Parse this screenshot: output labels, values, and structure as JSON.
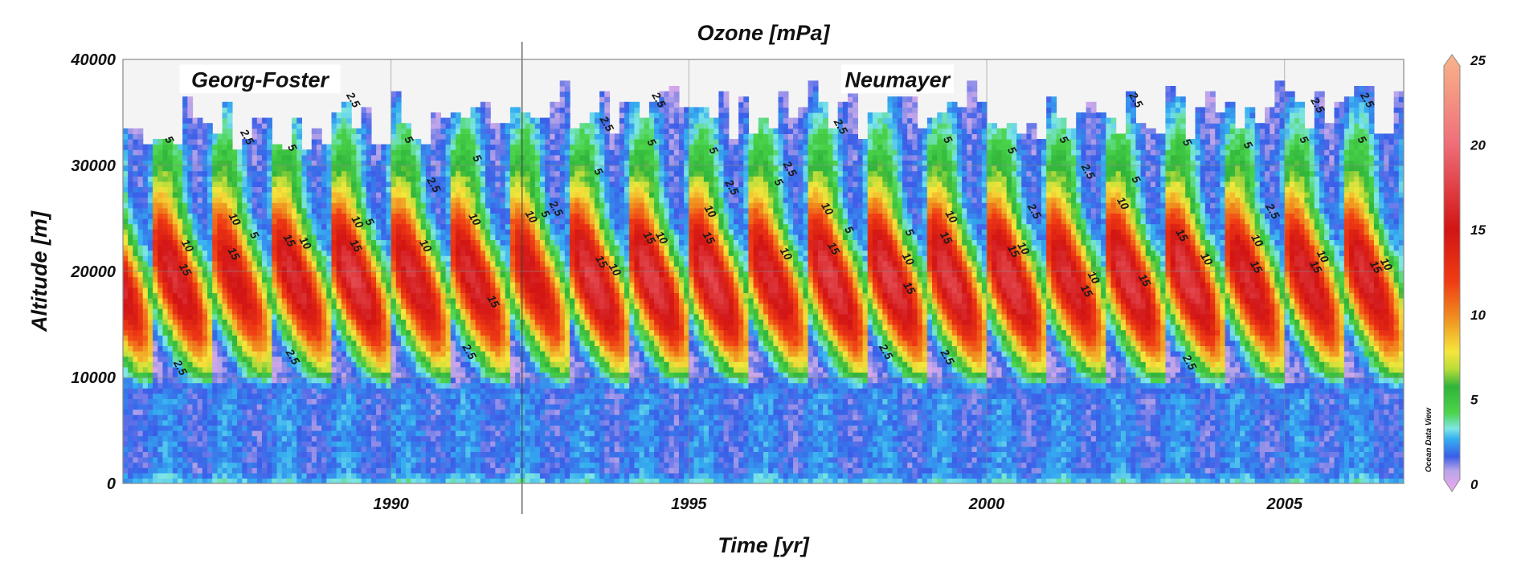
{
  "chart_data": {
    "type": "heatmap",
    "title": "Ozone [mPa]",
    "xlabel": "Time [yr]",
    "ylabel": "Altitude [m]",
    "xlim": [
      1985.5,
      2007.0
    ],
    "ylim": [
      0,
      40000
    ],
    "x_ticks": [
      {
        "value": 1990,
        "label": "1990"
      },
      {
        "value": 1995,
        "label": "1995"
      },
      {
        "value": 2000,
        "label": "2000"
      },
      {
        "value": 2005,
        "label": "2005"
      }
    ],
    "y_ticks": [
      {
        "value": 0,
        "label": "0"
      },
      {
        "value": 10000,
        "label": "10000"
      },
      {
        "value": 20000,
        "label": "20000"
      },
      {
        "value": 30000,
        "label": "30000"
      },
      {
        "value": 40000,
        "label": "40000"
      }
    ],
    "grid": true,
    "station_change_year": 1992.2,
    "annotations": [
      {
        "text": "Georg-Foster",
        "x": 1987.8,
        "y": 38000
      },
      {
        "text": "Neumayer",
        "x": 1998.5,
        "y": 38000
      }
    ],
    "colorbar": {
      "min": 0,
      "max": 25,
      "ticks": [
        {
          "value": 0,
          "label": "0"
        },
        {
          "value": 5,
          "label": "5"
        },
        {
          "value": 10,
          "label": "10"
        },
        {
          "value": 15,
          "label": "15"
        },
        {
          "value": 20,
          "label": "20"
        },
        {
          "value": 25,
          "label": "25"
        }
      ],
      "stops": [
        {
          "value": 0,
          "color": "#f2a8ee"
        },
        {
          "value": 1.2,
          "color": "#b8a4e8"
        },
        {
          "value": 2,
          "color": "#3a5ee8"
        },
        {
          "value": 3,
          "color": "#35aef0"
        },
        {
          "value": 3.6,
          "color": "#7fe6e6"
        },
        {
          "value": 4.5,
          "color": "#4bd44b"
        },
        {
          "value": 6,
          "color": "#2fb43a"
        },
        {
          "value": 7,
          "color": "#b8dc3a"
        },
        {
          "value": 8,
          "color": "#f5e63c"
        },
        {
          "value": 10,
          "color": "#f08c1e"
        },
        {
          "value": 12,
          "color": "#f03c14"
        },
        {
          "value": 15,
          "color": "#d21414"
        },
        {
          "value": 20,
          "color": "#f0707a"
        },
        {
          "value": 25,
          "color": "#f8b48a"
        }
      ]
    },
    "contour_levels": [
      2.5,
      5,
      10,
      15
    ],
    "contour_labels": [
      "2.5",
      "5",
      "10",
      "15"
    ],
    "watermark": "Ocean Data View",
    "annual_peak_ozone_mPa": [
      {
        "year": 1986,
        "peak": 15
      },
      {
        "year": 1987,
        "peak": 14
      },
      {
        "year": 1988,
        "peak": 15
      },
      {
        "year": 1989,
        "peak": 16
      },
      {
        "year": 1990,
        "peak": 15
      },
      {
        "year": 1991,
        "peak": 15
      },
      {
        "year": 1992,
        "peak": 14
      },
      {
        "year": 1993,
        "peak": 16
      },
      {
        "year": 1994,
        "peak": 16
      },
      {
        "year": 1995,
        "peak": 16
      },
      {
        "year": 1996,
        "peak": 15
      },
      {
        "year": 1997,
        "peak": 16
      },
      {
        "year": 1998,
        "peak": 16
      },
      {
        "year": 1999,
        "peak": 16
      },
      {
        "year": 2000,
        "peak": 16
      },
      {
        "year": 2001,
        "peak": 15
      },
      {
        "year": 2002,
        "peak": 16
      },
      {
        "year": 2003,
        "peak": 16
      },
      {
        "year": 2004,
        "peak": 15
      },
      {
        "year": 2005,
        "peak": 15
      },
      {
        "year": 2006,
        "peak": 15
      }
    ]
  }
}
